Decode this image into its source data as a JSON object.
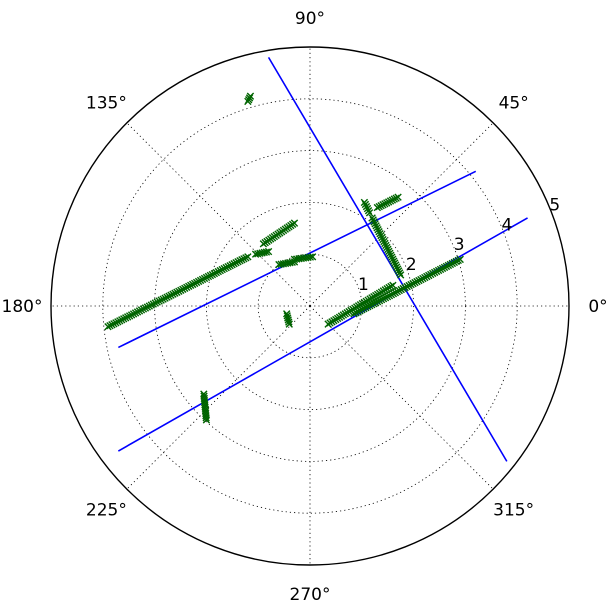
{
  "chart_data": {
    "type": "scatter",
    "title": "",
    "projection": "polar",
    "grid": true,
    "radial_range": [
      0,
      5
    ],
    "radial_ticks": [
      1,
      2,
      3,
      4,
      5
    ],
    "radial_tick_labels": [
      "1",
      "2",
      "3",
      "4",
      "5"
    ],
    "angle_ticks_deg": [
      0,
      45,
      90,
      135,
      180,
      225,
      270,
      315
    ],
    "angle_tick_labels": [
      "0°",
      "45°",
      "90°",
      "135°",
      "180°",
      "225°",
      "270°",
      "315°"
    ],
    "colors": {
      "points": "#006400",
      "lines": "#0000ff",
      "grid": "#000000"
    },
    "marker": "x",
    "point_segments": [
      {
        "x1": 0.35,
        "y1": -0.35,
        "x2": 1.6,
        "y2": 0.4
      },
      {
        "x1": 0.85,
        "y1": -0.15,
        "x2": 2.9,
        "y2": 0.9
      },
      {
        "x1": 1.2,
        "y1": 1.7,
        "x2": 1.75,
        "y2": 0.6
      },
      {
        "x1": 1.05,
        "y1": 2.0,
        "x2": 1.15,
        "y2": 1.8
      },
      {
        "x1": 1.3,
        "y1": 1.9,
        "x2": 1.7,
        "y2": 2.1
      },
      {
        "x1": -3.9,
        "y1": -0.4,
        "x2": -1.2,
        "y2": 0.95
      },
      {
        "x1": -0.9,
        "y1": 1.2,
        "x2": -0.3,
        "y2": 1.6
      },
      {
        "x1": -1.05,
        "y1": 1.0,
        "x2": -0.8,
        "y2": 1.05
      },
      {
        "x1": -2.05,
        "y1": -1.7,
        "x2": -2.0,
        "y2": -2.2
      },
      {
        "x1": -0.3,
        "y1": 0.9,
        "x2": 0.05,
        "y2": 0.95
      },
      {
        "x1": -0.45,
        "y1": -0.15,
        "x2": -0.4,
        "y2": -0.35
      },
      {
        "x1": -0.6,
        "y1": 0.8,
        "x2": -0.3,
        "y2": 0.85
      },
      {
        "x1": -1.2,
        "y1": 3.95,
        "x2": -1.15,
        "y2": 4.05
      }
    ],
    "blue_lines": [
      {
        "x1": -3.7,
        "y1": -0.8,
        "x2": 3.2,
        "y2": 2.6
      },
      {
        "x1": -3.7,
        "y1": -2.8,
        "x2": 4.2,
        "y2": 1.7
      },
      {
        "x1": -0.8,
        "y1": 4.8,
        "x2": 3.8,
        "y2": -3.0
      }
    ]
  }
}
